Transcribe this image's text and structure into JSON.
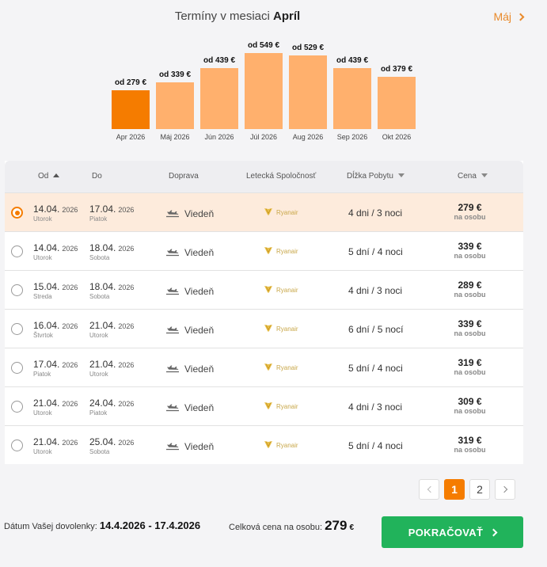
{
  "header": {
    "title_prefix": "Termíny v mesiaci",
    "title_month": "Apríl",
    "next_month_label": "Máj"
  },
  "chart_data": {
    "type": "bar",
    "categories": [
      "Apr 2026",
      "Máj 2026",
      "Jún 2026",
      "Júl 2026",
      "Aug 2026",
      "Sep 2026",
      "Okt 2026"
    ],
    "values": [
      279,
      339,
      439,
      549,
      529,
      439,
      379
    ],
    "value_labels": [
      "od 279 €",
      "od 339 €",
      "od 439 €",
      "od 549 €",
      "od 529 €",
      "od 439 €",
      "od 379 €"
    ],
    "selected_index": 0,
    "colors": {
      "selected": "#f57c00",
      "default": "#ffb06d"
    }
  },
  "table": {
    "headers": {
      "from": "Od",
      "to": "Do",
      "transport": "Doprava",
      "airline": "Letecká Spoločnosť",
      "length": "Dĺžka Pobytu",
      "price": "Cena"
    },
    "rows": [
      {
        "from_date": "14.04.",
        "from_year": "2026",
        "from_day": "Utorok",
        "to_date": "17.04.",
        "to_year": "2026",
        "to_day": "Piatok",
        "transport": "Viedeň",
        "airline": "Ryanair",
        "stay_days": "4 dni",
        "stay_nights": "3 noci",
        "price": "279 €",
        "price_sub": "na osobu",
        "selected": true
      },
      {
        "from_date": "14.04.",
        "from_year": "2026",
        "from_day": "Utorok",
        "to_date": "18.04.",
        "to_year": "2026",
        "to_day": "Sobota",
        "transport": "Viedeň",
        "airline": "Ryanair",
        "stay_days": "5 dní",
        "stay_nights": "4 noci",
        "price": "339 €",
        "price_sub": "na osobu",
        "selected": false
      },
      {
        "from_date": "15.04.",
        "from_year": "2026",
        "from_day": "Streda",
        "to_date": "18.04.",
        "to_year": "2026",
        "to_day": "Sobota",
        "transport": "Viedeň",
        "airline": "Ryanair",
        "stay_days": "4 dni",
        "stay_nights": "3 noci",
        "price": "289 €",
        "price_sub": "na osobu",
        "selected": false
      },
      {
        "from_date": "16.04.",
        "from_year": "2026",
        "from_day": "Štvrtok",
        "to_date": "21.04.",
        "to_year": "2026",
        "to_day": "Utorok",
        "transport": "Viedeň",
        "airline": "Ryanair",
        "stay_days": "6 dní",
        "stay_nights": "5 nocí",
        "price": "339 €",
        "price_sub": "na osobu",
        "selected": false
      },
      {
        "from_date": "17.04.",
        "from_year": "2026",
        "from_day": "Piatok",
        "to_date": "21.04.",
        "to_year": "2026",
        "to_day": "Utorok",
        "transport": "Viedeň",
        "airline": "Ryanair",
        "stay_days": "5 dní",
        "stay_nights": "4 noci",
        "price": "319 €",
        "price_sub": "na osobu",
        "selected": false
      },
      {
        "from_date": "21.04.",
        "from_year": "2026",
        "from_day": "Utorok",
        "to_date": "24.04.",
        "to_year": "2026",
        "to_day": "Piatok",
        "transport": "Viedeň",
        "airline": "Ryanair",
        "stay_days": "4 dni",
        "stay_nights": "3 noci",
        "price": "309 €",
        "price_sub": "na osobu",
        "selected": false
      },
      {
        "from_date": "21.04.",
        "from_year": "2026",
        "from_day": "Utorok",
        "to_date": "25.04.",
        "to_year": "2026",
        "to_day": "Sobota",
        "transport": "Viedeň",
        "airline": "Ryanair",
        "stay_days": "5 dní",
        "stay_nights": "4 noci",
        "price": "319 €",
        "price_sub": "na osobu",
        "selected": false
      }
    ]
  },
  "pagination": {
    "pages": [
      "1",
      "2"
    ],
    "current": "1"
  },
  "footer": {
    "dates_label": "Dátum Vašej dovolenky:",
    "dates_value": "14.4.2026 - 17.4.2026",
    "total_label": "Celková cena na osobu:",
    "total_value": "279",
    "total_currency": "€",
    "continue_label": "POKRAČOVAŤ"
  }
}
